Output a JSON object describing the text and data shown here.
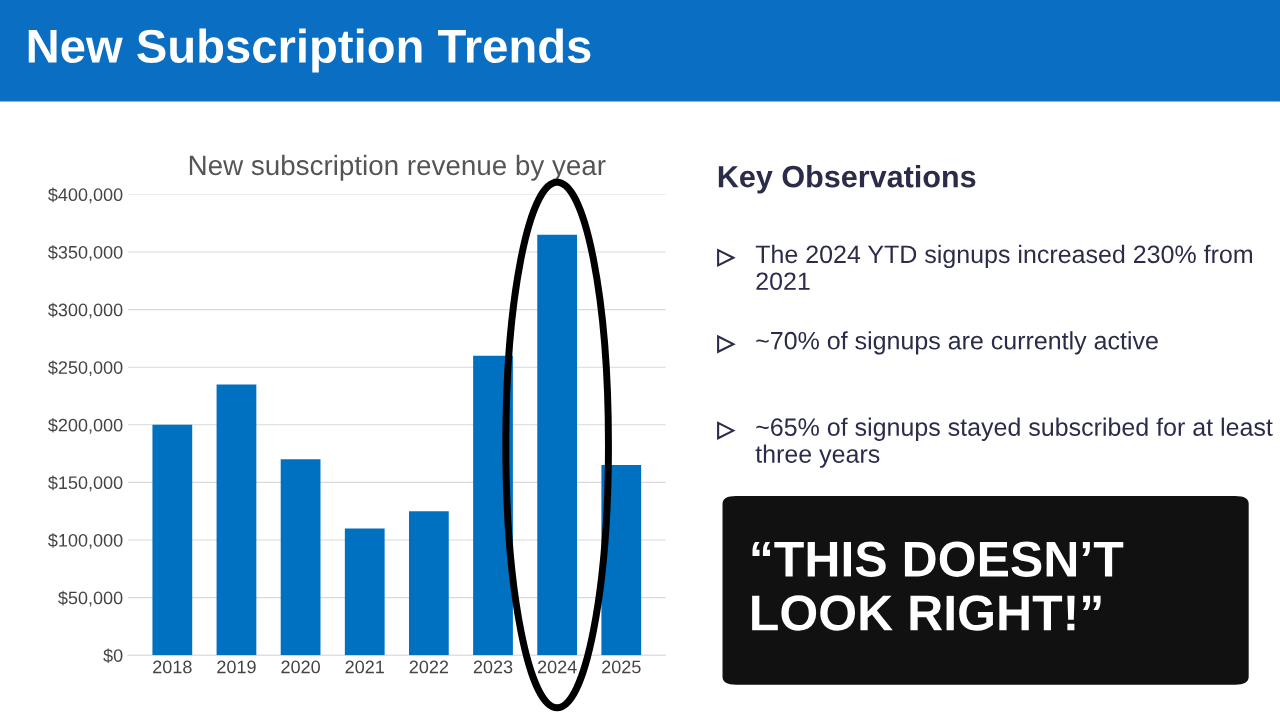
{
  "chart_data": {
    "type": "bar",
    "title": "New Subscription Trends",
    "subtitle": "New subscription revenue by year",
    "categories": [
      "2018",
      "2019",
      "2020",
      "2021",
      "2022",
      "2023",
      "2024",
      "2025"
    ],
    "values": [
      200000,
      235000,
      170000,
      110000,
      125000,
      260000,
      365000,
      165000
    ],
    "color": "#0070c0",
    "ylim": [
      0,
      400000
    ],
    "yticks": [
      {
        "value": 0,
        "label": "$0"
      },
      {
        "value": 50000,
        "label": "$50,000"
      },
      {
        "value": 100000,
        "label": "$100,000"
      },
      {
        "value": 150000,
        "label": "$150,000"
      },
      {
        "value": 200000,
        "label": "$200,000"
      },
      {
        "value": 250000,
        "label": "$250,000"
      },
      {
        "value": 300000,
        "label": "$300,000"
      },
      {
        "value": 350000,
        "label": "$350,000"
      },
      {
        "value": 400000,
        "label": "$400,000"
      }
    ],
    "grid": "y",
    "legend": false,
    "annotations": [
      "Key Observations",
      "The 2024 YTD signups increased 230% from 2021",
      "~70% of signups are currently active",
      "~65% of signups stayed subscribed for at least three years",
      "“THIS DOESN’T LOOK RIGHT!”"
    ]
  }
}
